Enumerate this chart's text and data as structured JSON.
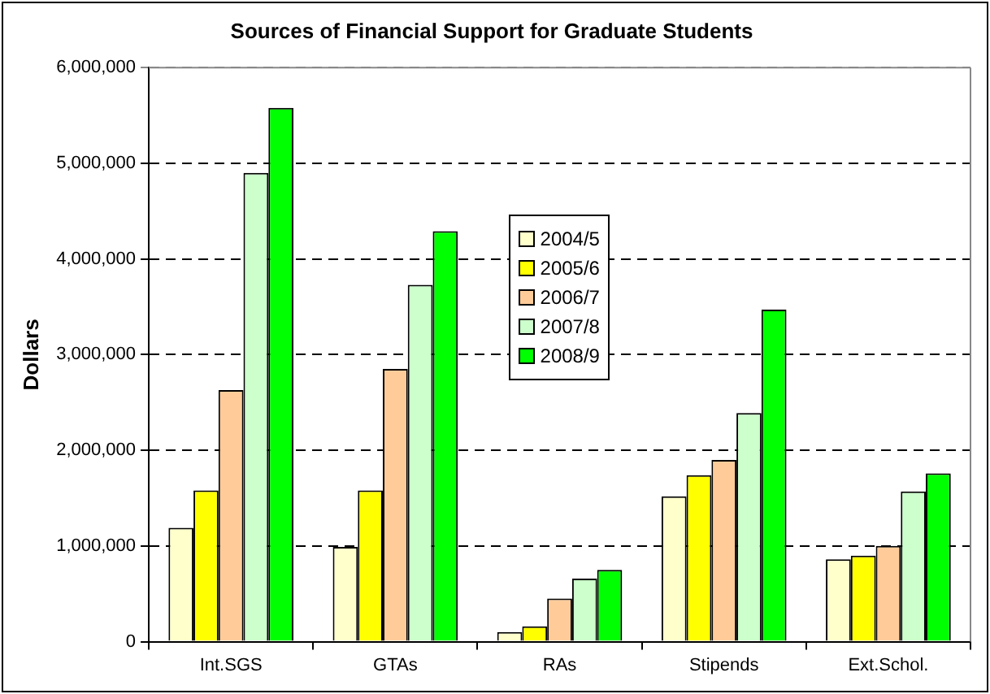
{
  "chart_data": {
    "type": "bar",
    "title": "Sources of Financial Support for Graduate Students",
    "ylabel": "Dollars",
    "categories": [
      "Int.SGS",
      "GTAs",
      "RAs",
      "Stipends",
      "Ext.Schol."
    ],
    "series": [
      {
        "name": "2004/5",
        "color": "#ffffcc",
        "values": [
          1190000,
          990000,
          100000,
          1520000,
          860000
        ]
      },
      {
        "name": "2005/6",
        "color": "#ffff00",
        "values": [
          1580000,
          1580000,
          160000,
          1740000,
          900000
        ]
      },
      {
        "name": "2006/7",
        "color": "#ffcc99",
        "values": [
          2630000,
          2850000,
          450000,
          1900000,
          1000000
        ]
      },
      {
        "name": "2007/8",
        "color": "#ccffcc",
        "values": [
          4900000,
          3730000,
          660000,
          2390000,
          1570000
        ]
      },
      {
        "name": "2008/9",
        "color": "#00ff00",
        "values": [
          5580000,
          4290000,
          750000,
          3470000,
          1760000
        ]
      }
    ],
    "ylim": [
      0,
      6000000
    ],
    "yticks": [
      0,
      {
        "value": 1000000,
        "label": "1,000,000"
      },
      {
        "value": 2000000,
        "label": "2,000,000"
      },
      {
        "value": 3000000,
        "label": "3,000,000"
      },
      {
        "value": 4000000,
        "label": "4,000,000"
      },
      {
        "value": 5000000,
        "label": "5,000,000"
      },
      {
        "value": 6000000,
        "label": "6,000,000"
      }
    ],
    "grid": "y",
    "legend": "center"
  }
}
